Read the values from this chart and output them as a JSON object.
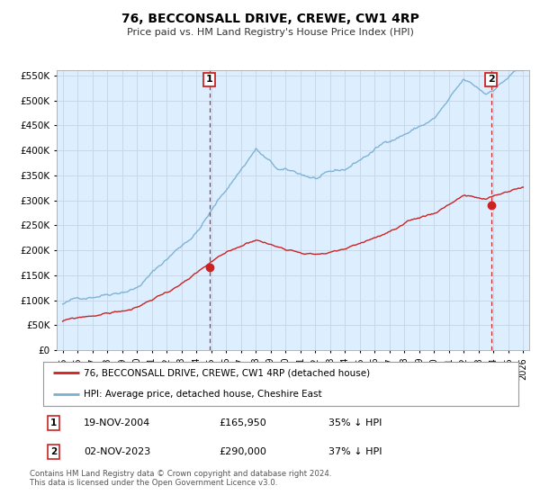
{
  "title": "76, BECCONSALL DRIVE, CREWE, CW1 4RP",
  "subtitle": "Price paid vs. HM Land Registry's House Price Index (HPI)",
  "legend_line1": "76, BECCONSALL DRIVE, CREWE, CW1 4RP (detached house)",
  "legend_line2": "HPI: Average price, detached house, Cheshire East",
  "transaction1_date": "19-NOV-2004",
  "transaction1_price": "£165,950",
  "transaction1_hpi": "35% ↓ HPI",
  "transaction1_x": 2004.88,
  "transaction1_y": 165950,
  "transaction2_date": "02-NOV-2023",
  "transaction2_price": "£290,000",
  "transaction2_hpi": "37% ↓ HPI",
  "transaction2_x": 2023.83,
  "transaction2_y": 290000,
  "footer": "Contains HM Land Registry data © Crown copyright and database right 2024.\nThis data is licensed under the Open Government Licence v3.0.",
  "hpi_color": "#7ab0d4",
  "property_color": "#cc2222",
  "marker_color": "#cc2222",
  "grid_color": "#c8d8e8",
  "bg_color": "#ffffff",
  "plot_bg_color": "#ddeeff",
  "ylim": [
    0,
    560000
  ],
  "xlim": [
    1994.6,
    2026.4
  ],
  "yticks": [
    0,
    50000,
    100000,
    150000,
    200000,
    250000,
    300000,
    350000,
    400000,
    450000,
    500000,
    550000
  ],
  "xticks": [
    1995,
    1996,
    1997,
    1998,
    1999,
    2000,
    2001,
    2002,
    2003,
    2004,
    2005,
    2006,
    2007,
    2008,
    2009,
    2010,
    2011,
    2012,
    2013,
    2014,
    2015,
    2016,
    2017,
    2018,
    2019,
    2020,
    2021,
    2022,
    2023,
    2024,
    2025,
    2026
  ]
}
